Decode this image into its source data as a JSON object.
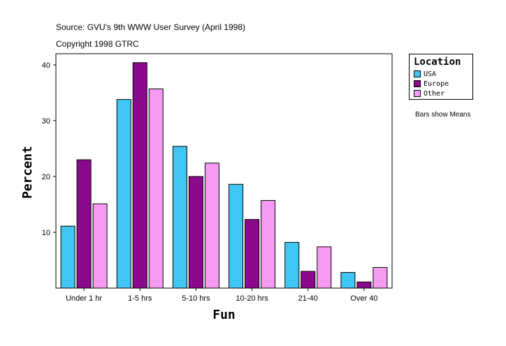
{
  "header": {
    "source": "Source: GVU's 9th WWW User Survey (April 1998)",
    "copyright": "Copyright 1998 GTRC"
  },
  "legend": {
    "title": "Location",
    "items": [
      {
        "label": "USA",
        "color": "#3FC6F2"
      },
      {
        "label": "Europe",
        "color": "#8B0A8B"
      },
      {
        "label": "Other",
        "color": "#F59CF2"
      }
    ]
  },
  "note": "Bars show Means",
  "chart_data": {
    "type": "bar",
    "xlabel": "Fun",
    "ylabel": "Percent",
    "categories": [
      "Under 1 hr",
      "1-5 hrs",
      "5-10 hrs",
      "10-20 hrs",
      "21-40",
      "Over 40"
    ],
    "series": [
      {
        "name": "USA",
        "color": "#3FC6F2",
        "values": [
          11.1,
          33.8,
          25.4,
          18.6,
          8.2,
          2.8
        ]
      },
      {
        "name": "Europe",
        "color": "#8B0A8B",
        "values": [
          23.0,
          40.4,
          20.0,
          12.3,
          3.0,
          1.1
        ]
      },
      {
        "name": "Other",
        "color": "#F59CF2",
        "values": [
          15.1,
          35.7,
          22.4,
          15.7,
          7.4,
          3.7
        ]
      }
    ],
    "ylim": [
      0,
      42
    ],
    "yticks": [
      10,
      20,
      30,
      40
    ],
    "grid": false,
    "legend_position": "right"
  }
}
